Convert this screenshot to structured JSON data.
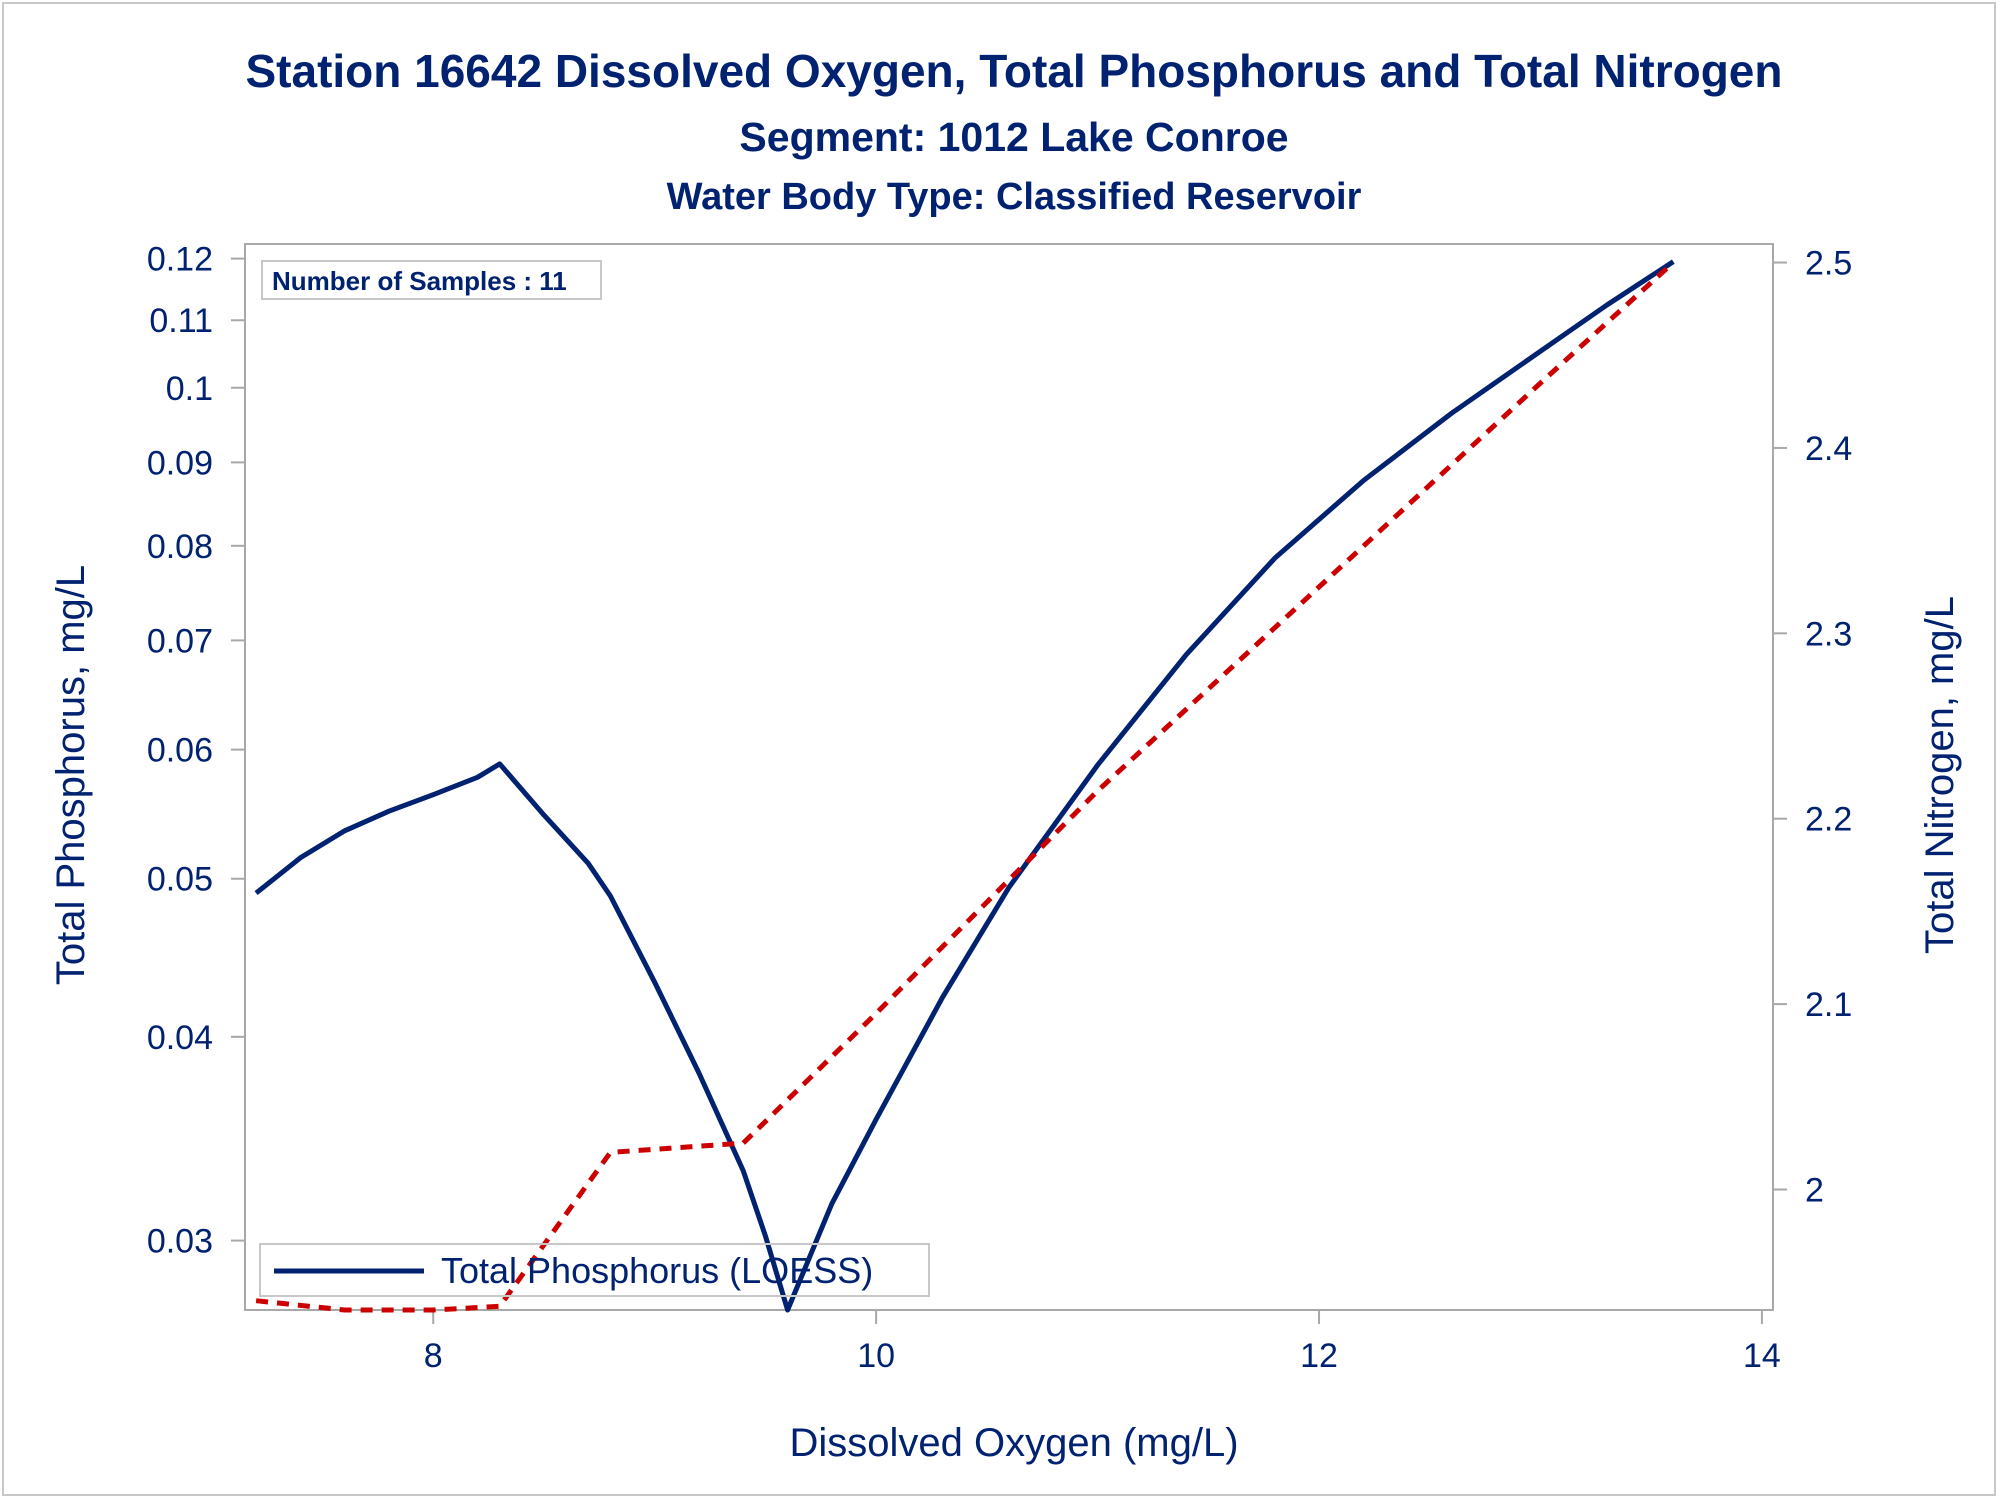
{
  "chart_data": {
    "type": "line",
    "title": "Station 16642  Dissolved Oxygen, Total Phosphorus and Total Nitrogen",
    "subtitle": "Segment: 1012  Lake Conroe",
    "subtitle2": "Water Body Type: Classified Reservoir",
    "xlabel": "Dissolved Oxygen (mg/L)",
    "ylabel": "Total Phosphorus, mg/L",
    "y2label": "Total Nitrogen, mg/L",
    "inset": "Number of Samples : 11",
    "grid": false,
    "legend_placement": "bottom-left",
    "xlim": [
      7.15,
      14.05
    ],
    "x_ticks": [
      8,
      10,
      12,
      14
    ],
    "ylim": [
      0.0272,
      0.1225
    ],
    "y_scale": "log",
    "y_ticks": [
      0.03,
      0.04,
      0.05,
      0.06,
      0.07,
      0.08,
      0.09,
      0.1,
      0.11,
      0.12
    ],
    "y_tick_labels": [
      "0.03",
      "0.04",
      "0.05",
      "0.06",
      "0.07",
      "0.08",
      "0.09",
      "0.1",
      "0.11",
      "0.12"
    ],
    "y2lim": [
      1.935,
      2.51
    ],
    "y2_ticks": [
      2.0,
      2.1,
      2.2,
      2.3,
      2.4,
      2.5
    ],
    "y2_tick_labels": [
      "2",
      "2.1",
      "2.2",
      "2.3",
      "2.4",
      "2.5"
    ],
    "series": [
      {
        "name": "Total Phosphorus (LOESS)",
        "axis": "left",
        "color": "#002270",
        "style": "solid",
        "x": [
          7.2,
          7.4,
          7.6,
          7.8,
          8.0,
          8.2,
          8.3,
          8.5,
          8.7,
          8.8,
          9.0,
          9.2,
          9.4,
          9.5,
          9.6,
          9.8,
          10.0,
          10.3,
          10.6,
          11.0,
          11.4,
          11.8,
          12.2,
          12.6,
          13.0,
          13.3,
          13.6
        ],
        "y": [
          0.049,
          0.0515,
          0.0535,
          0.055,
          0.0563,
          0.0577,
          0.0588,
          0.0547,
          0.0511,
          0.0488,
          0.0432,
          0.038,
          0.0331,
          0.0302,
          0.0272,
          0.0316,
          0.0356,
          0.0423,
          0.0494,
          0.0587,
          0.0686,
          0.0786,
          0.0877,
          0.0965,
          0.1053,
          0.1124,
          0.1195
        ]
      },
      {
        "axis": "right",
        "color": "#cc0000",
        "style": "dashed",
        "x": [
          7.2,
          7.6,
          8.0,
          8.3,
          8.8,
          9.4,
          10.0,
          11.0,
          12.0,
          13.0,
          13.6
        ],
        "y": [
          1.94,
          1.935,
          1.935,
          1.937,
          2.02,
          2.025,
          2.095,
          2.215,
          2.325,
          2.435,
          2.5
        ]
      }
    ]
  }
}
